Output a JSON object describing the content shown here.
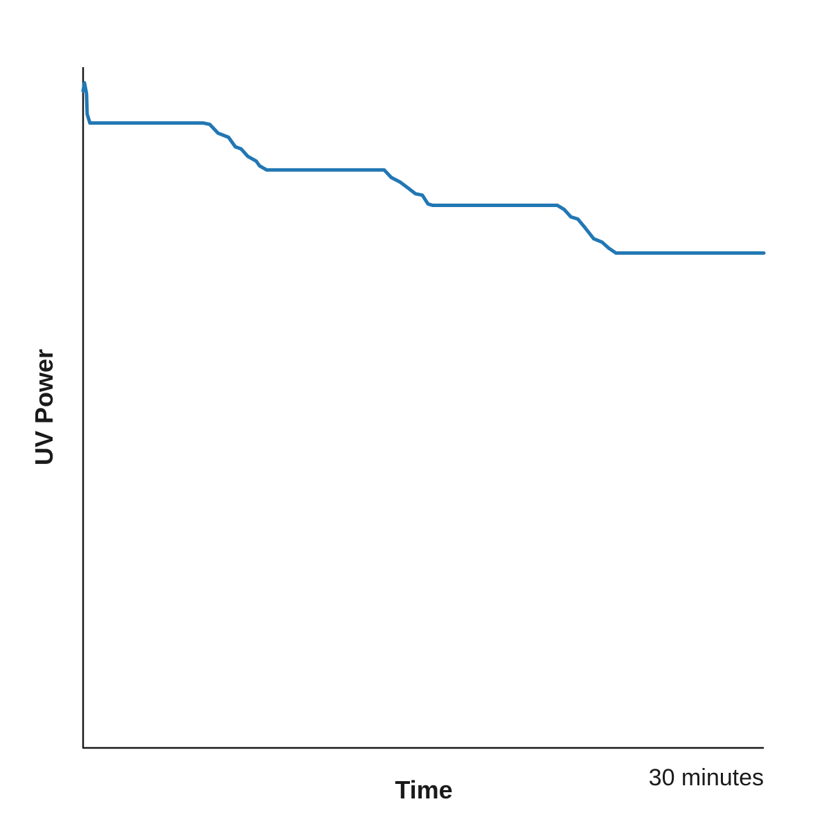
{
  "chart_data": {
    "type": "line",
    "x_label": "Time",
    "y_label": "UV Power",
    "x": [
      0,
      0.06,
      0.15,
      0.18,
      0.3,
      5.28,
      5.58,
      5.95,
      6.41,
      6.71,
      6.96,
      7.26,
      7.63,
      7.78,
      8.09,
      13.27,
      13.58,
      13.98,
      14.34,
      14.65,
      14.95,
      15.2,
      15.41,
      20.9,
      21.2,
      21.5,
      21.8,
      22.1,
      22.5,
      22.87,
      23.17,
      23.48,
      30
    ],
    "series": [
      {
        "color": "#2277b4",
        "values": [
          96.5,
          97.7,
          96.1,
          93.1,
          91.8,
          91.8,
          91.6,
          90.3,
          89.7,
          88.3,
          88.0,
          86.9,
          86.2,
          85.5,
          84.9,
          84.9,
          83.8,
          83.1,
          82.2,
          81.4,
          81.2,
          79.9,
          79.7,
          79.7,
          79.1,
          78.0,
          77.7,
          76.5,
          74.8,
          74.3,
          73.4,
          72.7,
          72.7
        ]
      }
    ],
    "xlim": [
      0,
      30
    ],
    "ylim": [
      0,
      100
    ],
    "xticks": [
      {
        "value": 30,
        "label": "30 minutes"
      }
    ]
  }
}
